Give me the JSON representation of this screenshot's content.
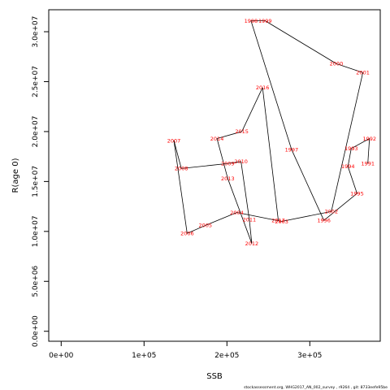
{
  "chart_data": {
    "type": "line",
    "title": "",
    "xlabel": "SSB",
    "ylabel": "R(age 0)",
    "xlim": [
      -15000,
      385000
    ],
    "ylim": [
      -1000000,
      32200000
    ],
    "x_ticks": [
      {
        "value": 0,
        "label": "0e+00"
      },
      {
        "value": 100000,
        "label": "1e+05"
      },
      {
        "value": 200000,
        "label": "2e+05"
      },
      {
        "value": 300000,
        "label": "3e+05"
      }
    ],
    "y_ticks": [
      {
        "value": 0,
        "label": "0.0e+00"
      },
      {
        "value": 5000000,
        "label": "5.0e+06"
      },
      {
        "value": 10000000,
        "label": "1.0e+07"
      },
      {
        "value": 15000000,
        "label": "1.5e+07"
      },
      {
        "value": 20000000,
        "label": "2.0e+07"
      },
      {
        "value": 25000000,
        "label": "2.5e+07"
      },
      {
        "value": 30000000,
        "label": "3.0e+07"
      }
    ],
    "grid": false,
    "legend": "none",
    "line_color": "#000000",
    "label_color": "#ff0000",
    "points": [
      {
        "year": "1991",
        "x": 370000,
        "y": 16800000
      },
      {
        "year": "1992",
        "x": 372000,
        "y": 19300000
      },
      {
        "year": "1993",
        "x": 350000,
        "y": 18300000
      },
      {
        "year": "1994",
        "x": 346000,
        "y": 16500000
      },
      {
        "year": "1995",
        "x": 357000,
        "y": 13800000
      },
      {
        "year": "1996",
        "x": 317000,
        "y": 11100000
      },
      {
        "year": "1997",
        "x": 278000,
        "y": 18200000
      },
      {
        "year": "1998",
        "x": 229000,
        "y": 31100000
      },
      {
        "year": "1999",
        "x": 246000,
        "y": 31100000
      },
      {
        "year": "2000",
        "x": 332000,
        "y": 26800000
      },
      {
        "year": "2001",
        "x": 364000,
        "y": 25900000
      },
      {
        "year": "2002",
        "x": 326000,
        "y": 12000000
      },
      {
        "year": "2003",
        "x": 266000,
        "y": 11000000
      },
      {
        "year": "2004",
        "x": 212000,
        "y": 11900000
      },
      {
        "year": "2005",
        "x": 174000,
        "y": 10600000
      },
      {
        "year": "2006",
        "x": 152000,
        "y": 9800000
      },
      {
        "year": "2007",
        "x": 136000,
        "y": 19100000
      },
      {
        "year": "2008",
        "x": 145000,
        "y": 16300000
      },
      {
        "year": "2009",
        "x": 201000,
        "y": 16800000
      },
      {
        "year": "2010",
        "x": 217000,
        "y": 17000000
      },
      {
        "year": "2011",
        "x": 227000,
        "y": 11200000
      },
      {
        "year": "2012",
        "x": 230000,
        "y": 8800000
      },
      {
        "year": "2013",
        "x": 201000,
        "y": 15300000
      },
      {
        "year": "2014",
        "x": 188000,
        "y": 19300000
      },
      {
        "year": "2015",
        "x": 218000,
        "y": 20000000
      },
      {
        "year": "2016",
        "x": 243000,
        "y": 24400000
      },
      {
        "year": "2017",
        "x": 262000,
        "y": 11100000
      }
    ]
  },
  "footer": {
    "text": "stockassessment.org,  WHG2017_AN_002_survey  ,  r9264  ,  git:  8733eefe95be"
  }
}
